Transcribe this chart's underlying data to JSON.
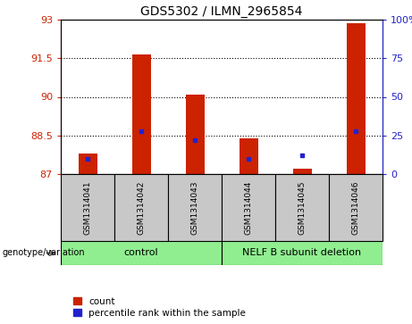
{
  "title": "GDS5302 / ILMN_2965854",
  "samples": [
    "GSM1314041",
    "GSM1314042",
    "GSM1314043",
    "GSM1314044",
    "GSM1314045",
    "GSM1314046"
  ],
  "count_values": [
    87.8,
    91.65,
    90.1,
    88.4,
    87.2,
    92.85
  ],
  "percentile_values": [
    10,
    28,
    22,
    10,
    12,
    28
  ],
  "y_min": 87,
  "y_max": 93,
  "y_ticks": [
    87,
    88.5,
    90,
    91.5,
    93
  ],
  "y_right_ticks": [
    0,
    25,
    50,
    75,
    100
  ],
  "grid_lines": [
    88.5,
    90,
    91.5
  ],
  "bar_color": "#CC2200",
  "percentile_color": "#2222CC",
  "label_area_color": "#C8C8C8",
  "group_area_color": "#90EE90",
  "bar_width": 0.35,
  "control_label": "control",
  "deletion_label": "NELF B subunit deletion",
  "genotype_label": "genotype/variation",
  "legend_count": "count",
  "legend_pct": "percentile rank within the sample"
}
